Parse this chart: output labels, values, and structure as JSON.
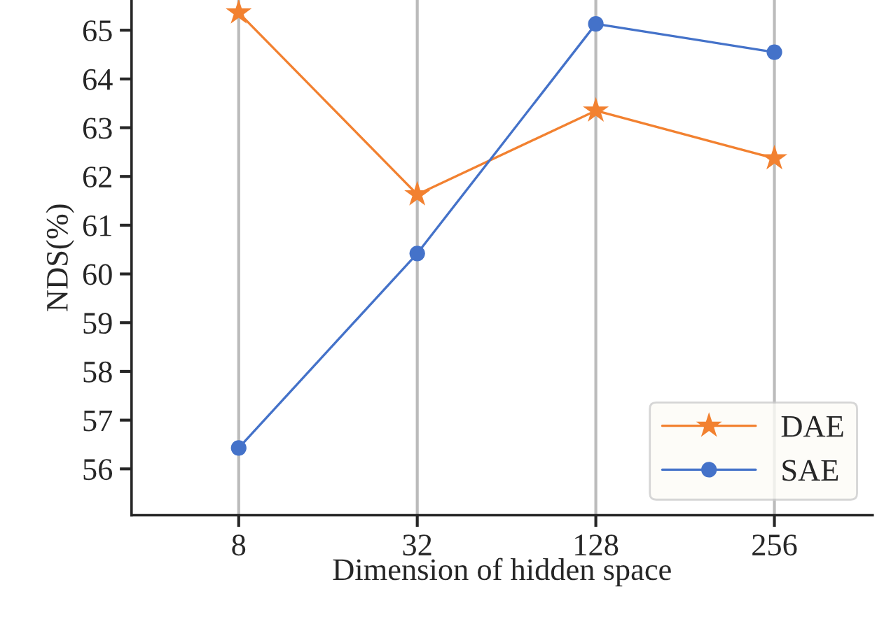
{
  "chart_data": {
    "type": "line",
    "xlabel": "Dimension of hidden space",
    "ylabel": "NDS(%)",
    "categories": [
      "8",
      "32",
      "128",
      "256"
    ],
    "series": [
      {
        "name": "DAE",
        "color": "#f28130",
        "marker": "star",
        "values": [
          65.36,
          61.63,
          63.35,
          62.37
        ]
      },
      {
        "name": "SAE",
        "color": "#4472c9",
        "marker": "circle",
        "values": [
          56.43,
          60.42,
          65.13,
          64.55
        ]
      }
    ],
    "ylim": [
      55.05,
      65.62
    ],
    "yticks": [
      56,
      57,
      58,
      59,
      60,
      61,
      62,
      63,
      64,
      65
    ],
    "grid": "x",
    "legend": "bottom right",
    "line_style": "solid"
  }
}
